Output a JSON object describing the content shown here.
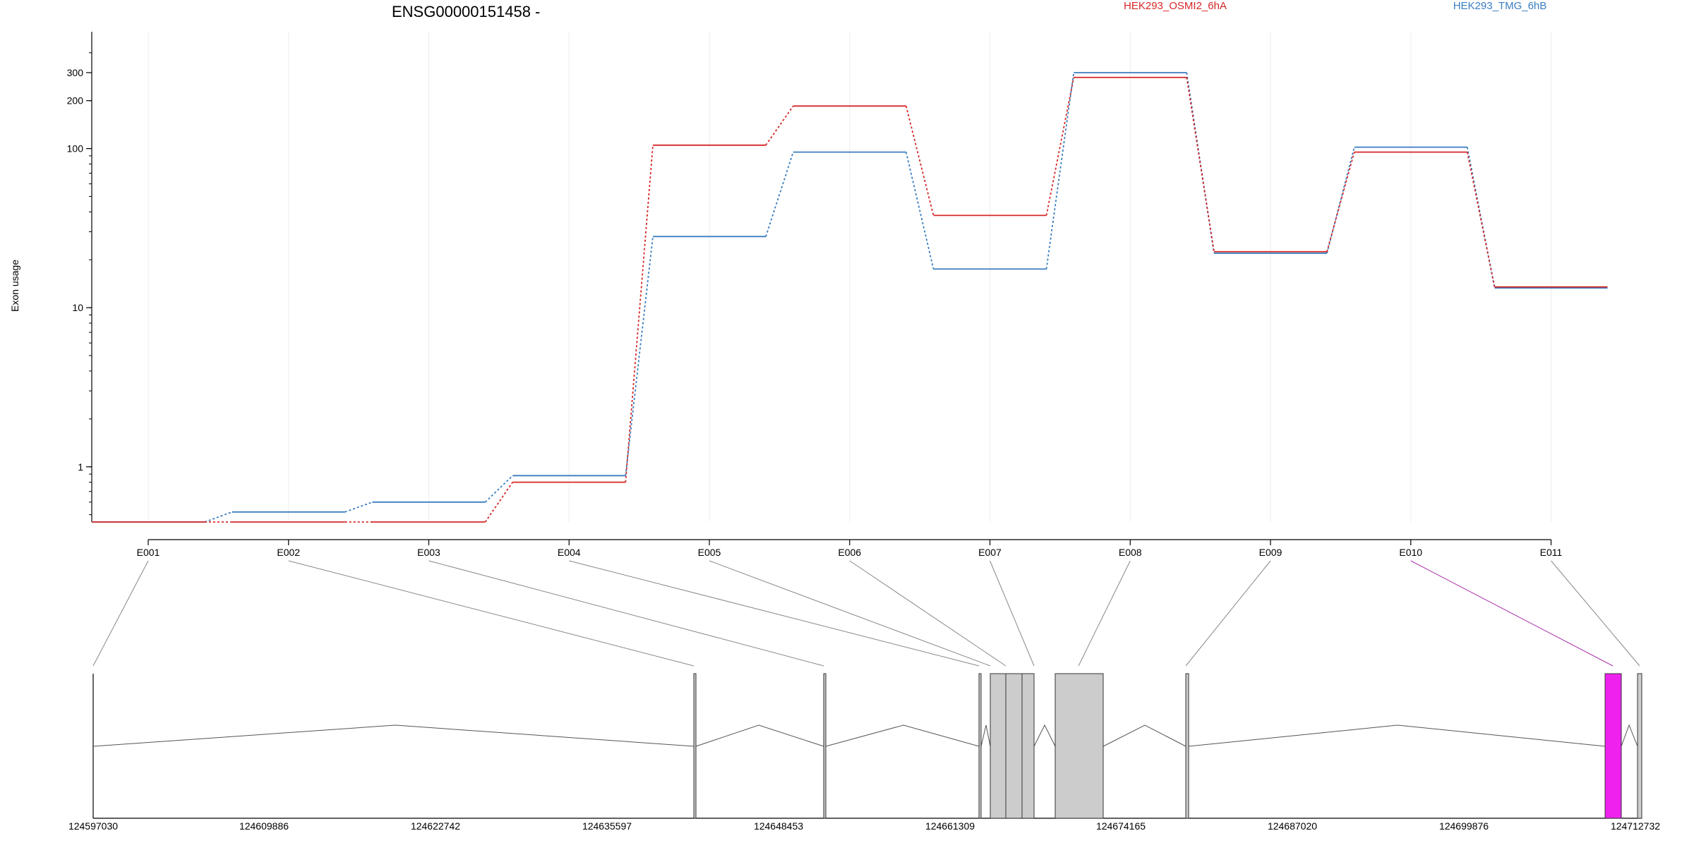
{
  "chart_data": {
    "type": "line",
    "title": "ENSG00000151458 -",
    "ylabel": "Exon usage",
    "yscale": "log",
    "yticks": [
      1,
      10,
      100,
      200,
      300
    ],
    "ylim": [
      0.45,
      420
    ],
    "grid": true,
    "legend_placement": "top",
    "categories": [
      "E001",
      "E002",
      "E003",
      "E004",
      "E005",
      "E006",
      "E007",
      "E008",
      "E009",
      "E010",
      "E011"
    ],
    "series": [
      {
        "name": "HEK293_OSMI2_6hA",
        "color": "#d62728",
        "values": [
          0.45,
          0.45,
          0.45,
          0.8,
          105,
          185,
          38,
          280,
          22.5,
          95,
          13.5
        ]
      },
      {
        "name": "HEK293_TMG_6hB",
        "color": "#3a7dc0",
        "values": [
          0.45,
          0.52,
          0.6,
          0.88,
          28,
          95,
          17.5,
          300,
          22,
          102,
          13.3
        ]
      }
    ],
    "gene_model": {
      "coordinate_ticks": [
        "124597030",
        "124609886",
        "124622742",
        "124635597",
        "124648453",
        "124661309",
        "124674165",
        "124687020",
        "124699876",
        "124712732"
      ],
      "highlighted_exon": "E010",
      "highlight_color": "#ee22ee",
      "exon_color": "#cccccc"
    }
  }
}
